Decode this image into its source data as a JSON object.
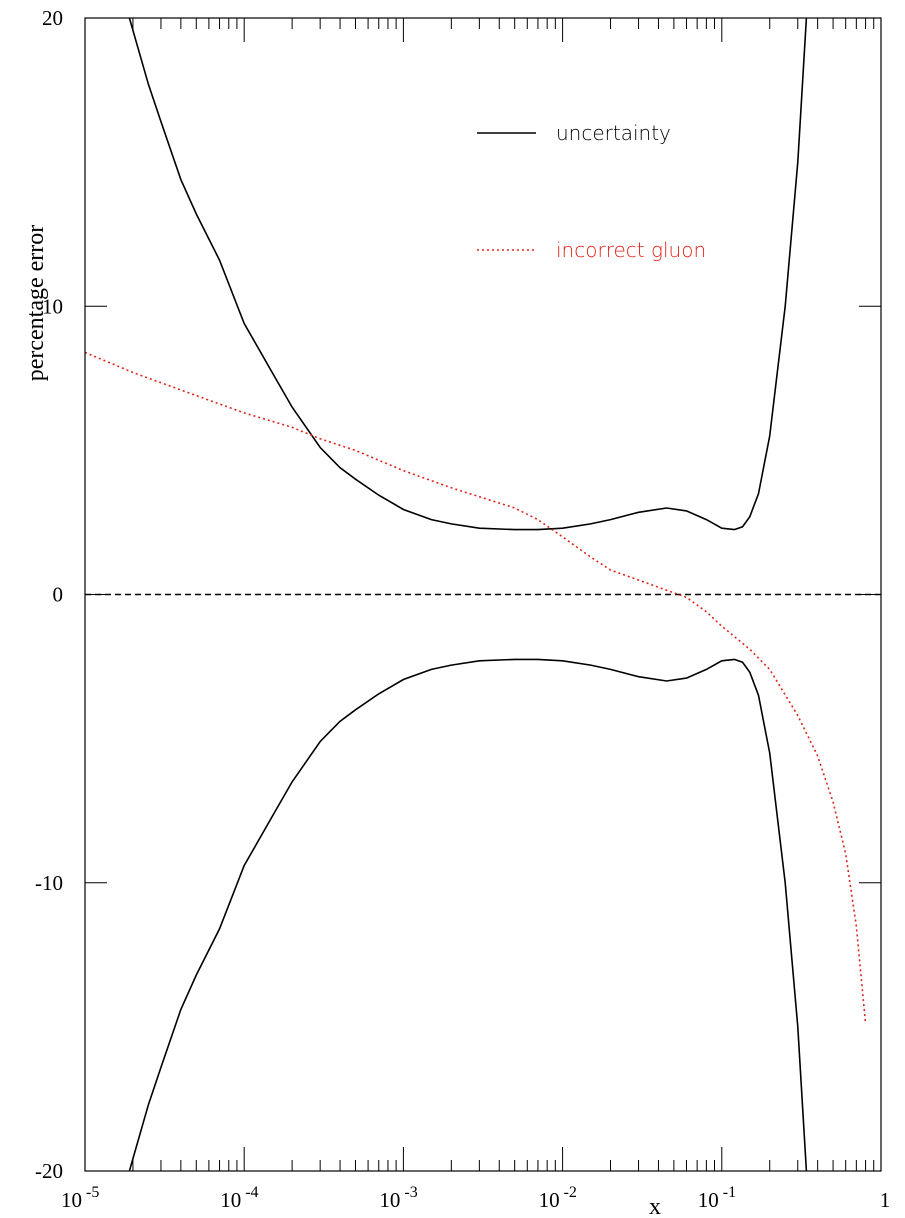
{
  "chart_data": {
    "type": "line",
    "title": "",
    "xlabel": "x",
    "ylabel": "percentage error",
    "xscale": "log",
    "xlim": [
      1e-05,
      1
    ],
    "ylim": [
      -20,
      20
    ],
    "grid": false,
    "legend_position": "top-right",
    "x_tick_labels": [
      {
        "x": 1e-05,
        "base": "10",
        "exp": "-5"
      },
      {
        "x": 0.0001,
        "base": "10",
        "exp": "-4"
      },
      {
        "x": 0.001,
        "base": "10",
        "exp": "-3"
      },
      {
        "x": 0.01,
        "base": "10",
        "exp": "-2"
      },
      {
        "x": 0.1,
        "base": "10",
        "exp": "-1"
      },
      {
        "x": 1,
        "base": "1",
        "exp": ""
      }
    ],
    "y_tick_labels": [
      {
        "y": 20,
        "label": "20"
      },
      {
        "y": 10,
        "label": "10"
      },
      {
        "y": 0,
        "label": "0"
      },
      {
        "y": -10,
        "label": "-10"
      },
      {
        "y": -20,
        "label": "-20"
      }
    ],
    "zero_line": {
      "y": 0,
      "style": "dashed",
      "color": "#000000"
    },
    "series": [
      {
        "name": "uncertainty",
        "color": "#000000",
        "style": "solid",
        "x": [
          1.9e-05,
          2.5e-05,
          3e-05,
          4e-05,
          5e-05,
          7e-05,
          0.0001,
          0.00015,
          0.0002,
          0.0003,
          0.0004,
          0.0005,
          0.0007,
          0.001,
          0.0015,
          0.002,
          0.003,
          0.005,
          0.007,
          0.01,
          0.015,
          0.02,
          0.03,
          0.045,
          0.06,
          0.08,
          0.1,
          0.12,
          0.135,
          0.15,
          0.17,
          0.2,
          0.25,
          0.3,
          0.34
        ],
        "values": [
          20,
          17.7,
          16.4,
          14.4,
          13.2,
          11.6,
          9.4,
          7.7,
          6.5,
          5.1,
          4.4,
          4.0,
          3.45,
          2.95,
          2.6,
          2.45,
          2.3,
          2.25,
          2.25,
          2.3,
          2.45,
          2.6,
          2.85,
          3.0,
          2.9,
          2.6,
          2.3,
          2.25,
          2.35,
          2.7,
          3.5,
          5.5,
          10.0,
          15.0,
          20
        ]
      },
      {
        "name": "",
        "color": "#000000",
        "style": "solid",
        "x": [
          1.9e-05,
          2.5e-05,
          3e-05,
          4e-05,
          5e-05,
          7e-05,
          0.0001,
          0.00015,
          0.0002,
          0.0003,
          0.0004,
          0.0005,
          0.0007,
          0.001,
          0.0015,
          0.002,
          0.003,
          0.005,
          0.007,
          0.01,
          0.015,
          0.02,
          0.03,
          0.045,
          0.06,
          0.08,
          0.1,
          0.12,
          0.135,
          0.15,
          0.17,
          0.2,
          0.25,
          0.3,
          0.34
        ],
        "values": [
          -20,
          -17.7,
          -16.4,
          -14.4,
          -13.2,
          -11.6,
          -9.4,
          -7.7,
          -6.5,
          -5.1,
          -4.4,
          -4.0,
          -3.45,
          -2.95,
          -2.6,
          -2.45,
          -2.3,
          -2.25,
          -2.25,
          -2.3,
          -2.45,
          -2.6,
          -2.85,
          -3.0,
          -2.9,
          -2.6,
          -2.3,
          -2.25,
          -2.35,
          -2.7,
          -3.5,
          -5.5,
          -10.0,
          -15.0,
          -20
        ]
      },
      {
        "name": "incorrect gluon",
        "color": "#e0241b",
        "style": "dotted",
        "x": [
          1e-05,
          2e-05,
          5e-05,
          0.0001,
          0.0002,
          0.0003,
          0.0005,
          0.001,
          0.002,
          0.005,
          0.007,
          0.01,
          0.015,
          0.02,
          0.03,
          0.045,
          0.06,
          0.08,
          0.1,
          0.15,
          0.2,
          0.3,
          0.4,
          0.5,
          0.6,
          0.7,
          0.8
        ],
        "values": [
          8.4,
          7.7,
          6.9,
          6.3,
          5.8,
          5.4,
          5.0,
          4.3,
          3.7,
          3.0,
          2.6,
          2.0,
          1.3,
          0.85,
          0.5,
          0.15,
          -0.1,
          -0.6,
          -1.1,
          -1.9,
          -2.6,
          -4.2,
          -5.6,
          -7.2,
          -9.0,
          -11.5,
          -14.9
        ]
      }
    ]
  }
}
